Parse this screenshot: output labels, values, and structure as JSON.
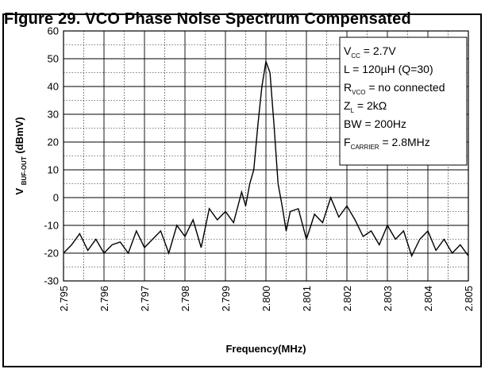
{
  "chart_data": {
    "type": "line",
    "title": "Figure 29. VCO Phase Noise Spectrum Compensated",
    "xlabel": "Frequency(MHz)",
    "ylabel": {
      "main": "V",
      "sub": "BUF-OUT",
      "unit": "(dBmV)"
    },
    "xlim": [
      2.795,
      2.805
    ],
    "ylim": [
      -30,
      60
    ],
    "xticks": [
      "2.795",
      "2.796",
      "2.797",
      "2.798",
      "2.799",
      "2.800",
      "2.801",
      "2.802",
      "2.803",
      "2.804",
      "2.805"
    ],
    "yticks": [
      "60",
      "50",
      "40",
      "30",
      "20",
      "10",
      "0",
      "-10",
      "-20",
      "-30"
    ],
    "grid": true,
    "legend_position": "top-right",
    "annotation_lines": [
      {
        "main": "V",
        "sub": "CC",
        "rest": " = 2.7V"
      },
      {
        "main": "L = 120µH (Q=30)",
        "sub": "",
        "rest": ""
      },
      {
        "main": "R",
        "sub": "VCO",
        "rest": " = no connected"
      },
      {
        "main": "Z",
        "sub": "L",
        "rest": " = 2kΩ"
      },
      {
        "main": "BW = 200Hz",
        "sub": "",
        "rest": ""
      },
      {
        "main": "F",
        "sub": "CARRIER",
        "rest": " = 2.8MHz"
      }
    ],
    "series": [
      {
        "x": [
          2.795,
          2.7952,
          2.7954,
          2.7956,
          2.7958,
          2.796,
          2.7962,
          2.7964,
          2.7966,
          2.7968,
          2.797,
          2.7972,
          2.7974,
          2.7976,
          2.7978,
          2.798,
          2.7982,
          2.7984,
          2.7986,
          2.7988,
          2.799,
          2.7992,
          2.7994,
          2.7995,
          2.7996,
          2.7997,
          2.7998,
          2.7999,
          2.8,
          2.8001,
          2.8002,
          2.8003,
          2.8004,
          2.8005,
          2.8006,
          2.8008,
          2.801,
          2.8012,
          2.8014,
          2.8016,
          2.8018,
          2.802,
          2.8022,
          2.8024,
          2.8026,
          2.8028,
          2.803,
          2.8032,
          2.8034,
          2.8036,
          2.8038,
          2.804,
          2.8042,
          2.8044,
          2.8046,
          2.8048,
          2.805
        ],
        "y": [
          -20,
          -17,
          -13,
          -19,
          -15,
          -20,
          -17,
          -16,
          -20,
          -12,
          -18,
          -15,
          -12,
          -20,
          -10,
          -14,
          -8,
          -18,
          -4,
          -8,
          -5,
          -9,
          2,
          -3,
          5,
          10,
          26,
          40,
          49,
          45,
          26,
          5,
          -3,
          -12,
          -5,
          -4,
          -15,
          -6,
          -9,
          0,
          -7,
          -3,
          -8,
          -14,
          -12,
          -17,
          -10,
          -15,
          -12,
          -21,
          -15,
          -12,
          -19,
          -15,
          -20,
          -17,
          -21
        ]
      }
    ]
  }
}
